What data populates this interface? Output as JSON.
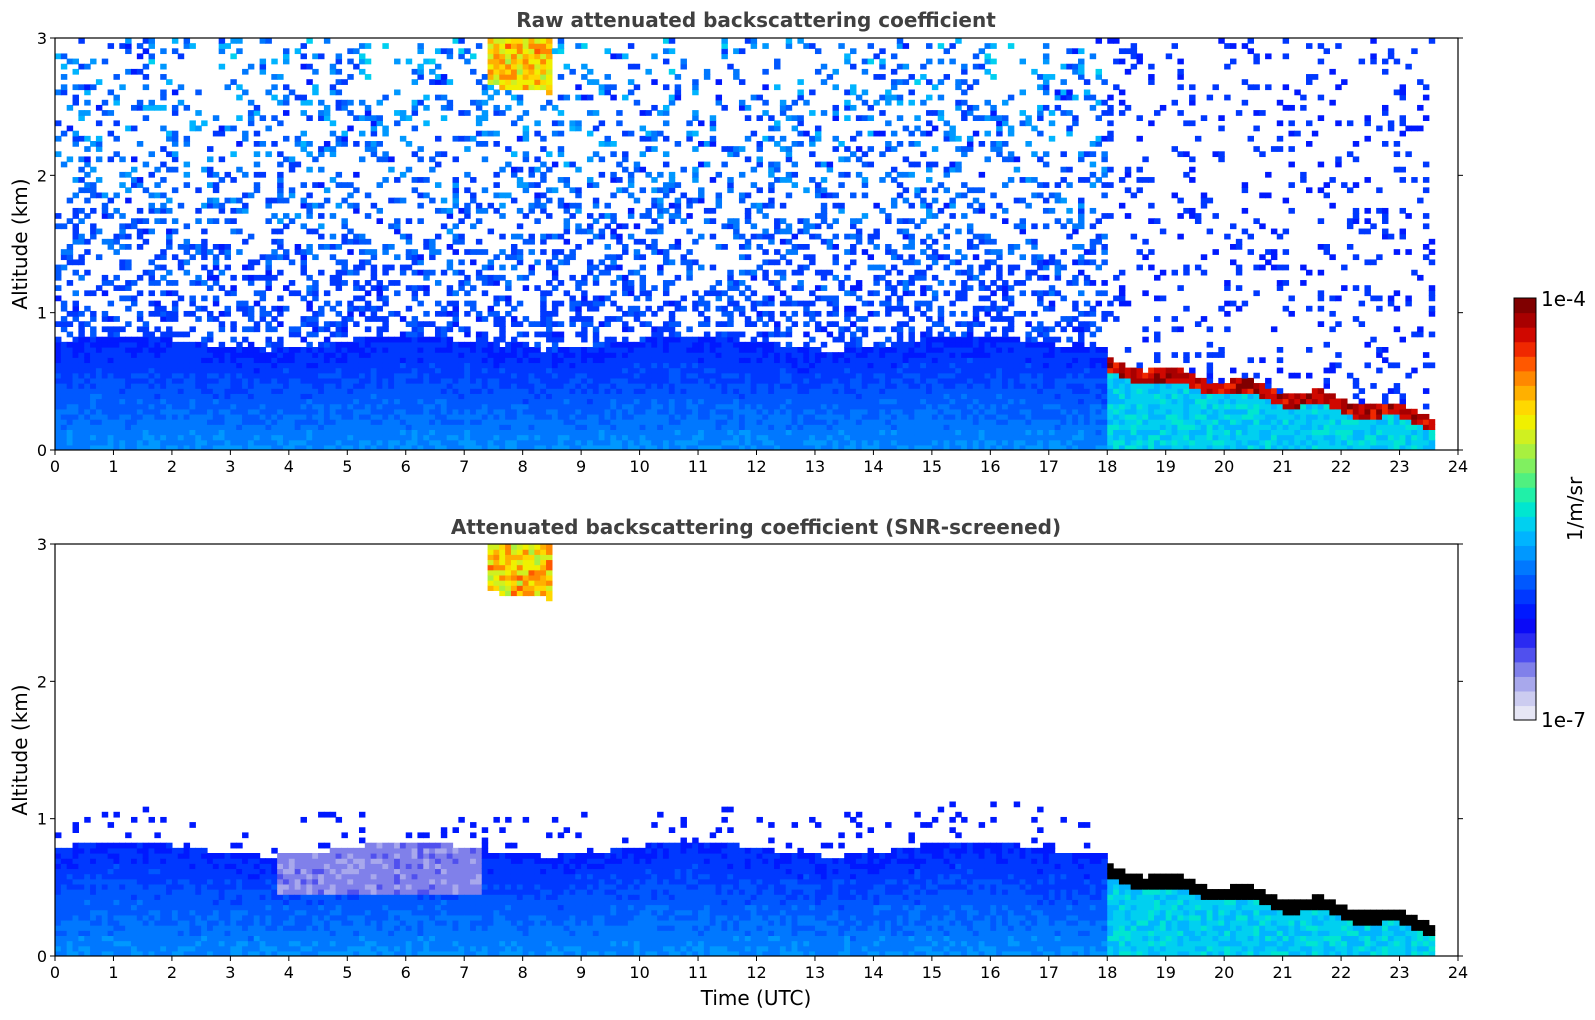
{
  "chart_data": [
    {
      "type": "heatmap",
      "title": "Raw attenuated backscattering coefficient",
      "xlabel": "",
      "ylabel": "Altitude (km)",
      "xlim": [
        0,
        24
      ],
      "ylim": [
        0,
        3
      ],
      "xticks": [
        "0",
        "1",
        "2",
        "3",
        "4",
        "5",
        "6",
        "7",
        "8",
        "9",
        "10",
        "11",
        "12",
        "13",
        "14",
        "15",
        "16",
        "17",
        "18",
        "19",
        "20",
        "21",
        "22",
        "23",
        "24"
      ],
      "yticks": [
        "0",
        "1",
        "2",
        "3"
      ],
      "data_end_time": 23.6,
      "features": [
        {
          "name": "boundary layer aerosol",
          "time": [
            0,
            18
          ],
          "altitude_top": 0.8,
          "level": "low"
        },
        {
          "name": "high cloud",
          "time": [
            7.5,
            8.4
          ],
          "altitude": [
            2.6,
            3.0
          ],
          "level": "medium-high"
        },
        {
          "name": "low cloud layer",
          "time": [
            18,
            23.6
          ],
          "altitude_top": [
            0.65,
            0.25
          ],
          "level": "high"
        },
        {
          "name": "background noise",
          "time": [
            0,
            23.6
          ],
          "altitude": [
            0.8,
            3.0
          ],
          "level": "low-random"
        }
      ]
    },
    {
      "type": "heatmap",
      "title": "Attenuated backscattering coefficient (SNR-screened)",
      "xlabel": "Time (UTC)",
      "ylabel": "Altitude (km)",
      "xlim": [
        0,
        24
      ],
      "ylim": [
        0,
        3
      ],
      "xticks": [
        "0",
        "1",
        "2",
        "3",
        "4",
        "5",
        "6",
        "7",
        "8",
        "9",
        "10",
        "11",
        "12",
        "13",
        "14",
        "15",
        "16",
        "17",
        "18",
        "19",
        "20",
        "21",
        "22",
        "23",
        "24"
      ],
      "yticks": [
        "0",
        "1",
        "2",
        "3"
      ],
      "data_end_time": 23.6,
      "features": [
        {
          "name": "boundary layer aerosol",
          "time": [
            0,
            18
          ],
          "altitude_top": 0.8,
          "level": "low"
        },
        {
          "name": "high cloud",
          "time": [
            7.5,
            8.4
          ],
          "altitude": [
            2.6,
            3.0
          ],
          "level": "medium-high"
        },
        {
          "name": "low cloud layer (saturated)",
          "time": [
            18,
            23.6
          ],
          "altitude_top": [
            0.65,
            0.25
          ],
          "level": "saturated"
        }
      ]
    }
  ],
  "colorbar": {
    "label": "1/m/sr",
    "max_label": "1e-4",
    "min_label": "1e-7",
    "colors": [
      "#e6e6f5",
      "#ccccf0",
      "#a8a8ec",
      "#8080ea",
      "#5050ee",
      "#2a2af2",
      "#0a0af7",
      "#0019ff",
      "#0038ff",
      "#0058ff",
      "#0078ff",
      "#0098ff",
      "#00b4ff",
      "#00d0f0",
      "#00e6d0",
      "#20f0a8",
      "#50f080",
      "#80f060",
      "#a8f040",
      "#d0f020",
      "#f0f000",
      "#ffd800",
      "#ffb000",
      "#ff8800",
      "#ff5800",
      "#f02800",
      "#d00800",
      "#a80000",
      "#800000"
    ]
  }
}
